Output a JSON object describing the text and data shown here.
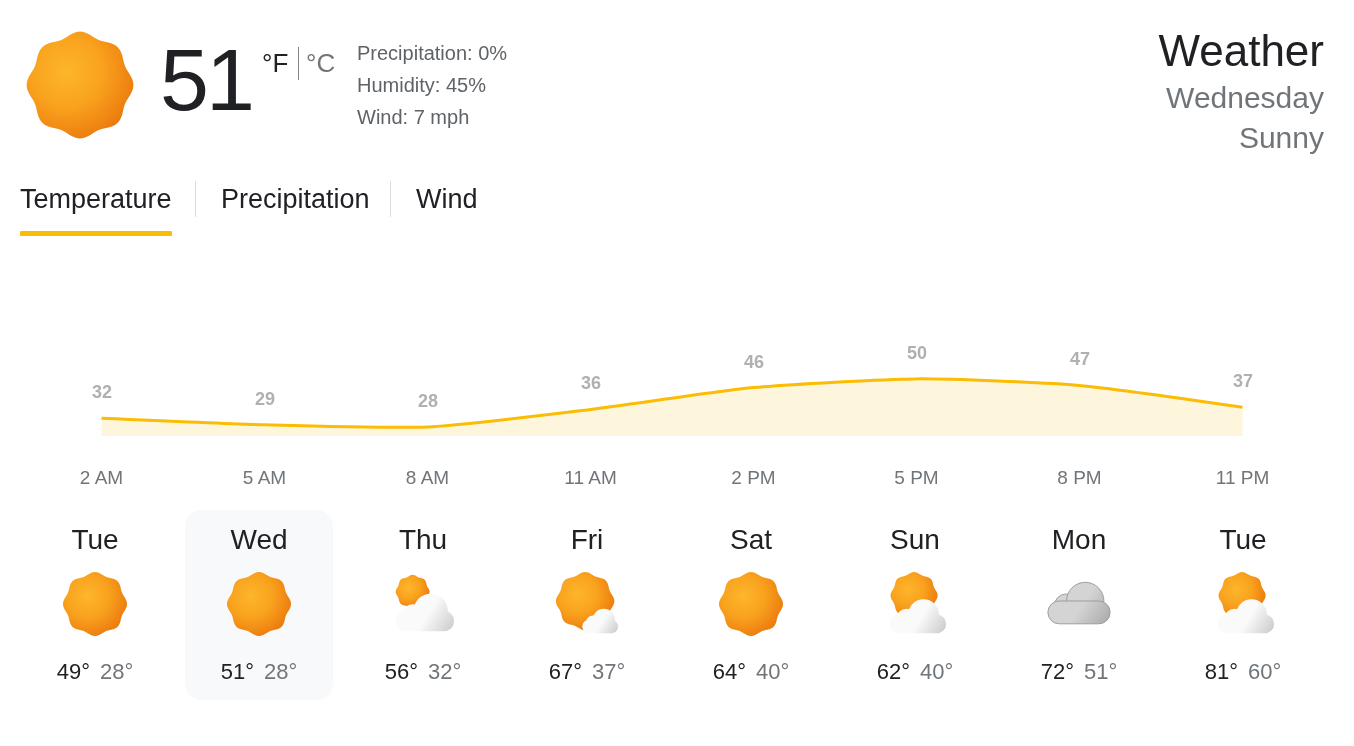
{
  "chart_data": [
    {
      "type": "other",
      "title": "Weather",
      "subtitle": "Wednesday",
      "annotations": [
        "51",
        "°F",
        "°C",
        "Precipitation: 0%",
        "Humidity: 45%",
        "Wind: 7 mph",
        "Sunny"
      ]
    },
    {
      "type": "area",
      "title": "Temperature",
      "annotations": [
        "Precipitation",
        "Wind"
      ],
      "categories": [
        "2 AM",
        "5 AM",
        "8 AM",
        "11 AM",
        "2 PM",
        "5 PM",
        "8 PM",
        "11 PM"
      ],
      "values": [
        32,
        29,
        28,
        36,
        46,
        50,
        47,
        37
      ],
      "color": "#fbbc04",
      "data_labels": true,
      "tick_labels": "x"
    },
    {
      "type": "other",
      "categories": [
        "Tue",
        "Wed",
        "Thu",
        "Fri",
        "Sat",
        "Sun",
        "Mon",
        "Tue"
      ],
      "annotations": [
        "49°",
        "28°",
        "51°",
        "28°",
        "56°",
        "32°",
        "67°",
        "37°",
        "64°",
        "40°",
        "62°",
        "40°",
        "72°",
        "51°",
        "81°",
        "60°"
      ]
    }
  ]
}
